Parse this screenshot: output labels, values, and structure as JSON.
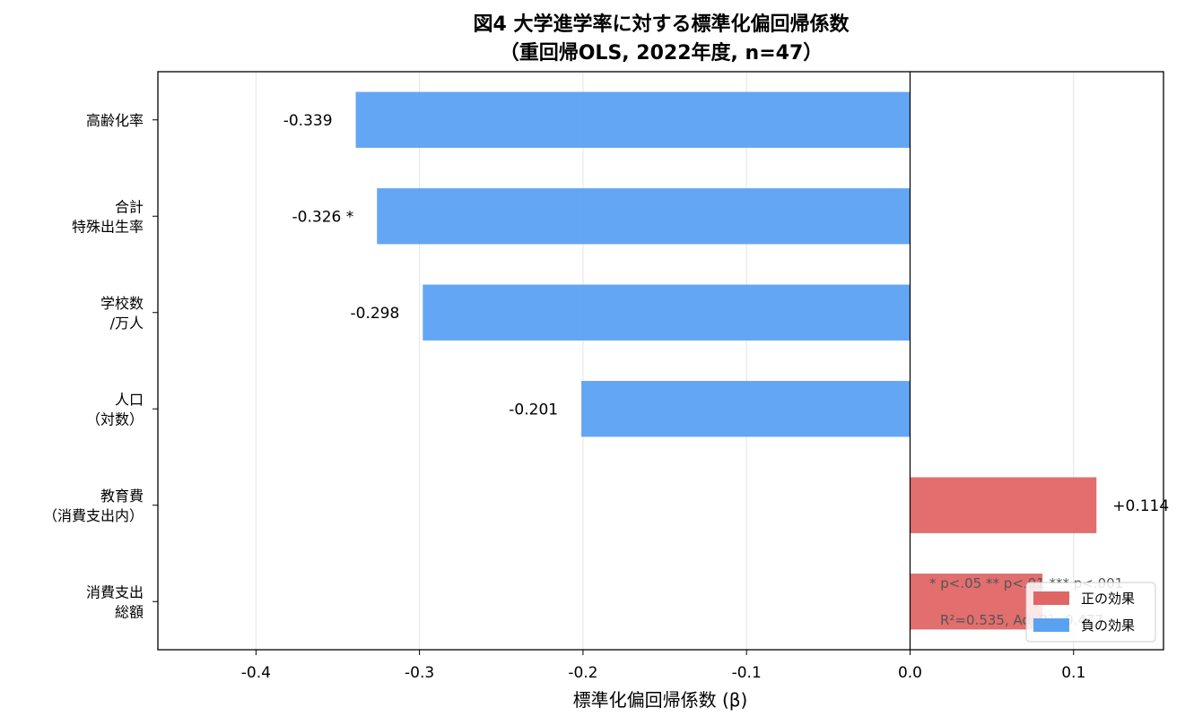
{
  "chart_data": {
    "type": "bar",
    "orientation": "horizontal",
    "title": "図4  大学進学率に対する標準化偏回帰係数",
    "subtitle": "（重回帰OLS, 2022年度, n=47）",
    "xlabel": "標準化偏回帰係数 (β)",
    "ylabel": "",
    "xlim": [
      -0.46,
      0.155
    ],
    "xticks": [
      -0.4,
      -0.3,
      -0.2,
      -0.1,
      0.0,
      0.1
    ],
    "xtick_labels": [
      "-0.4",
      "-0.3",
      "-0.2",
      "-0.1",
      "0.0",
      "0.1"
    ],
    "grid": "x",
    "categories": [
      [
        "高齢化率"
      ],
      [
        "合計",
        "特殊出生率"
      ],
      [
        "学校数",
        "/万人"
      ],
      [
        "人口",
        "（対数）"
      ],
      [
        "教育費",
        "（消費支出内）"
      ],
      [
        "消費支出",
        "総額"
      ]
    ],
    "values": [
      -0.339,
      -0.326,
      -0.298,
      -0.201,
      0.114,
      0.081
    ],
    "value_labels": [
      "-0.339",
      "-0.326 *",
      "-0.298",
      "-0.201",
      "+0.114",
      ""
    ],
    "colors": {
      "positive": "#e06666",
      "negative": "#5ba1f2"
    },
    "legend": {
      "position": "lower right",
      "entries": [
        {
          "label": "正の効果",
          "color": "#e06666"
        },
        {
          "label": "負の効果",
          "color": "#5ba1f2"
        }
      ]
    },
    "annotations": {
      "significance": "* p<.05  ** p<.01  *** p<.001",
      "fit": "R²=0.535, Adj R²=0.477"
    }
  }
}
